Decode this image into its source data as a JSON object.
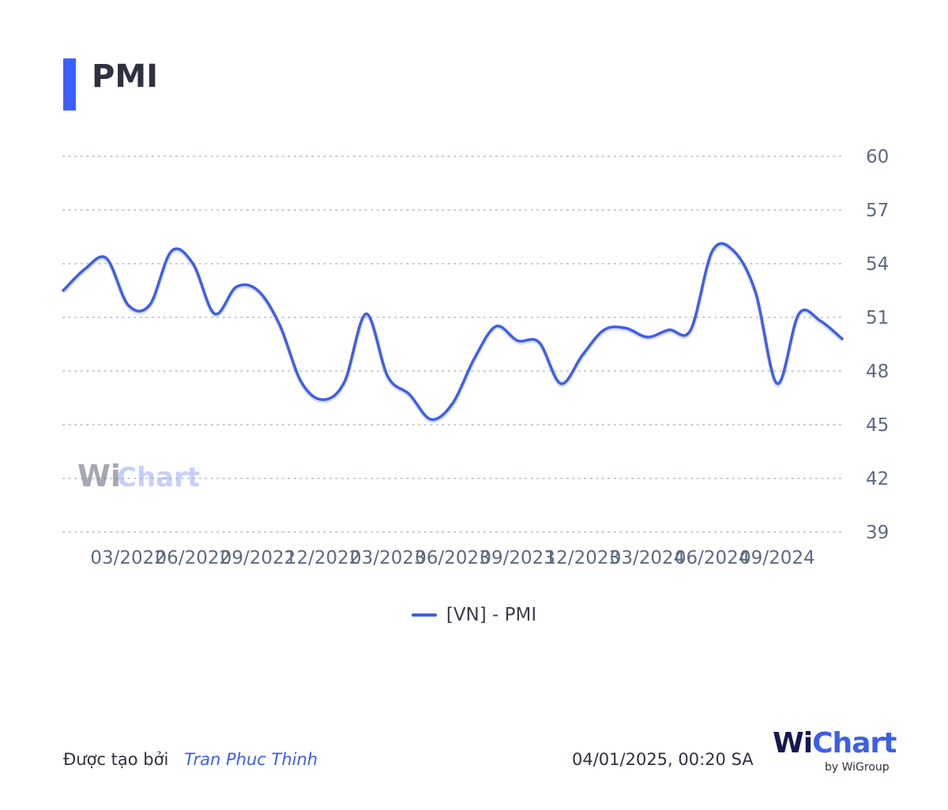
{
  "header": {
    "title": "PMI"
  },
  "chart_data": {
    "type": "line",
    "title": "PMI",
    "xlabel": "",
    "ylabel": "",
    "ylim": [
      39,
      60
    ],
    "yticks": [
      39,
      42,
      45,
      48,
      51,
      54,
      57,
      60
    ],
    "y_axis_position": "right",
    "grid": true,
    "legend_placement": "bottom-center",
    "x_tick_labels": [
      "03/2022",
      "06/2022",
      "09/2022",
      "12/2022",
      "03/2023",
      "06/2023",
      "09/2023",
      "12/2023",
      "03/2024",
      "06/2024",
      "09/2024"
    ],
    "series": [
      {
        "name": "[VN] - PMI",
        "color": "#3d5fe8",
        "x": [
          "12/2021",
          "01/2022",
          "02/2022",
          "03/2022",
          "04/2022",
          "05/2022",
          "06/2022",
          "07/2022",
          "08/2022",
          "09/2022",
          "10/2022",
          "11/2022",
          "12/2022",
          "01/2023",
          "02/2023",
          "03/2023",
          "04/2023",
          "05/2023",
          "06/2023",
          "07/2023",
          "08/2023",
          "09/2023",
          "10/2023",
          "11/2023",
          "12/2023",
          "01/2024",
          "02/2024",
          "03/2024",
          "04/2024",
          "05/2024",
          "06/2024",
          "07/2024",
          "08/2024",
          "09/2024",
          "10/2024",
          "11/2024",
          "12/2024"
        ],
        "values": [
          52.5,
          53.7,
          54.3,
          51.7,
          51.7,
          54.7,
          54.0,
          51.2,
          52.7,
          52.5,
          50.6,
          47.4,
          46.4,
          47.4,
          51.2,
          47.7,
          46.7,
          45.3,
          46.2,
          48.7,
          50.5,
          49.7,
          49.6,
          47.3,
          48.9,
          50.3,
          50.4,
          49.9,
          50.3,
          50.3,
          54.7,
          54.7,
          52.4,
          47.3,
          51.2,
          50.8,
          49.8
        ]
      }
    ]
  },
  "legend": {
    "label": "[VN] - PMI"
  },
  "watermark": {
    "text": "WiChart"
  },
  "footer": {
    "created_by_label": "Được tạo bởi",
    "author": "Tran Phuc Thinh",
    "timestamp": "04/01/2025, 00:20 SA"
  },
  "logo": {
    "brand_w": "Wi",
    "brand_rest": "Chart",
    "by_line": "by WiGroup"
  }
}
